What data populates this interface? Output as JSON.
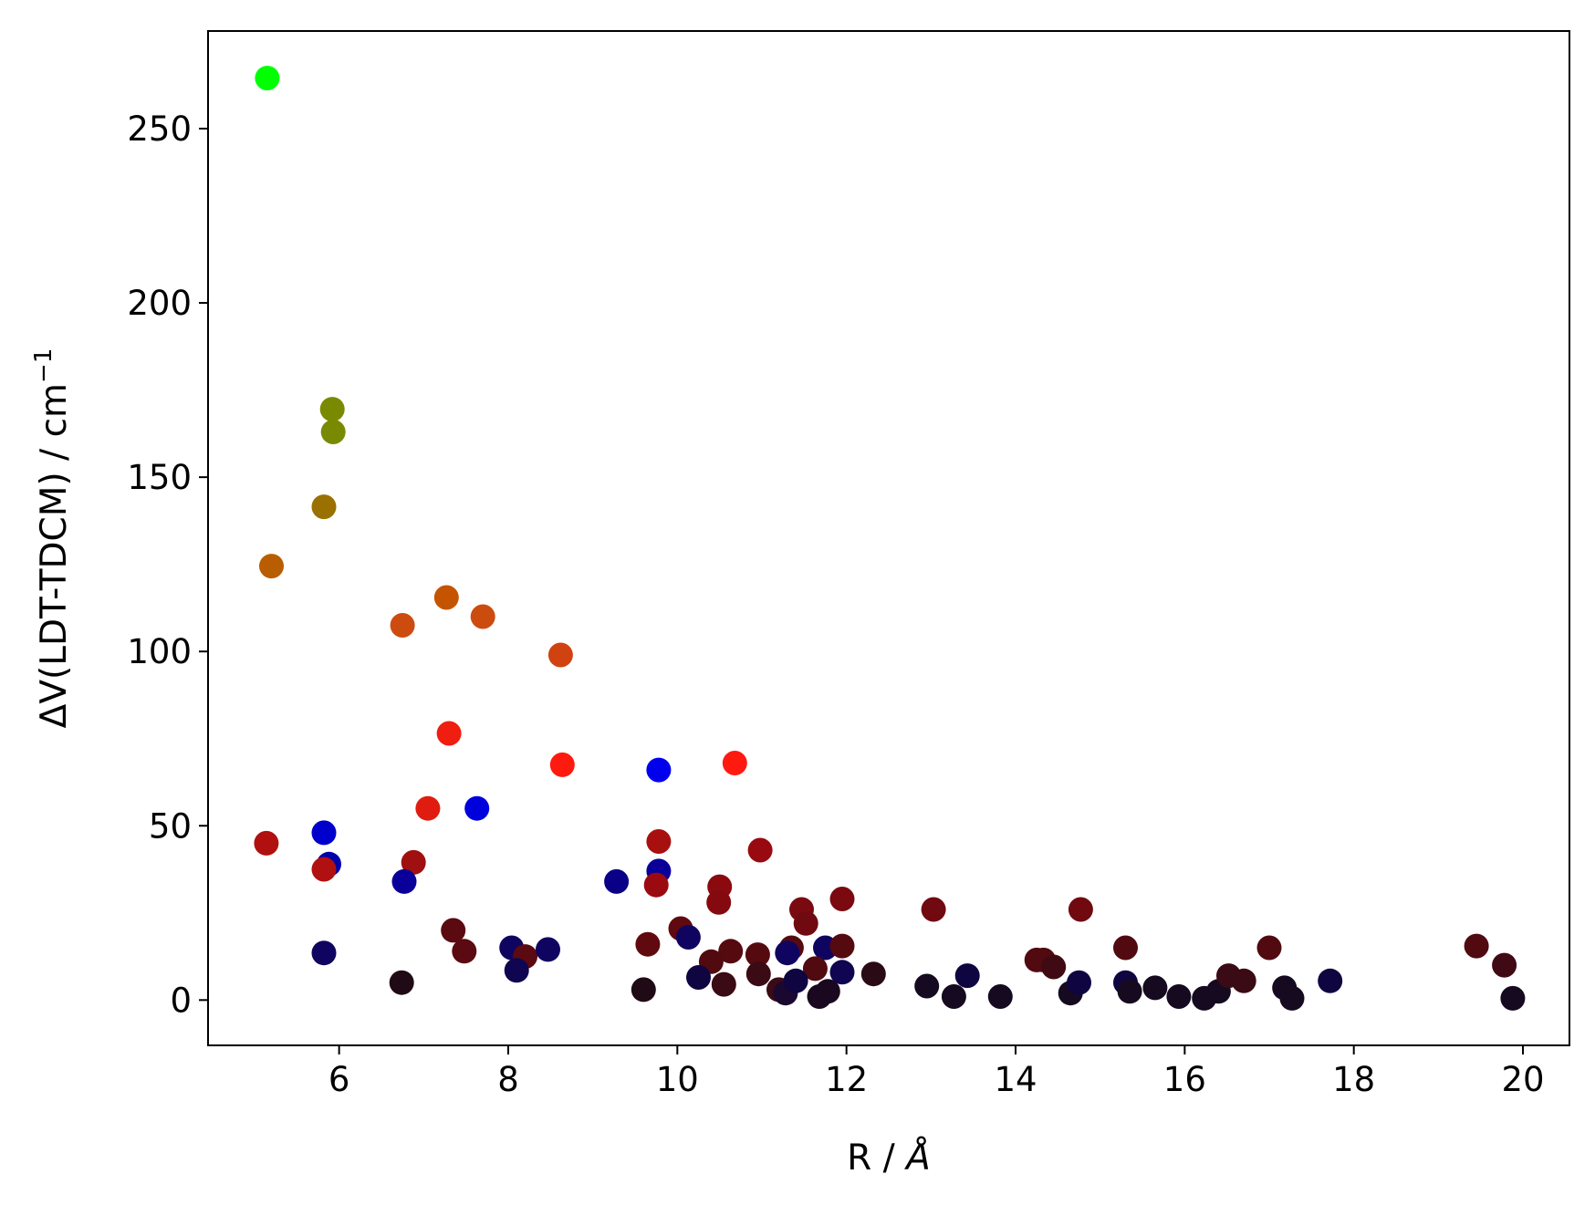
{
  "chart_data": {
    "type": "scatter",
    "xlabel": "R / Å",
    "xlabel_parts": {
      "prefix": "R / ",
      "unit": "Å"
    },
    "ylabel": "ΔV(LDT-TDCM) / cm⁻¹",
    "ylabel_parts": {
      "main": "ΔV(LDT-TDCM) / cm",
      "sup": "−1"
    },
    "xlim": [
      4.45,
      20.55
    ],
    "ylim": [
      -13,
      278
    ],
    "xticks": [
      6,
      8,
      10,
      12,
      14,
      16,
      18,
      20
    ],
    "yticks": [
      0,
      50,
      100,
      150,
      200,
      250
    ],
    "grid": false,
    "legend": "none",
    "points": [
      {
        "x": 5.15,
        "y": 264.5,
        "color": "#00ff00"
      },
      {
        "x": 5.92,
        "y": 169.5,
        "color": "#7a8a00"
      },
      {
        "x": 5.93,
        "y": 163.0,
        "color": "#7a8a00"
      },
      {
        "x": 5.82,
        "y": 141.5,
        "color": "#9a7000"
      },
      {
        "x": 5.2,
        "y": 124.5,
        "color": "#b85e00"
      },
      {
        "x": 7.27,
        "y": 115.5,
        "color": "#c55400"
      },
      {
        "x": 6.75,
        "y": 107.5,
        "color": "#cc4c10"
      },
      {
        "x": 7.7,
        "y": 110.0,
        "color": "#cc4c10"
      },
      {
        "x": 8.62,
        "y": 99.0,
        "color": "#d04210"
      },
      {
        "x": 7.3,
        "y": 76.5,
        "color": "#ef1e10"
      },
      {
        "x": 8.64,
        "y": 67.5,
        "color": "#ff1a10"
      },
      {
        "x": 10.68,
        "y": 68.0,
        "color": "#ff1a10"
      },
      {
        "x": 7.05,
        "y": 55.0,
        "color": "#e01c10"
      },
      {
        "x": 9.78,
        "y": 66.0,
        "color": "#0000ee"
      },
      {
        "x": 7.63,
        "y": 55.0,
        "color": "#0000dd"
      },
      {
        "x": 5.82,
        "y": 48.0,
        "color": "#0000cc"
      },
      {
        "x": 5.88,
        "y": 39.0,
        "color": "#0000aa"
      },
      {
        "x": 5.14,
        "y": 45.0,
        "color": "#b01010"
      },
      {
        "x": 5.82,
        "y": 37.5,
        "color": "#b01010"
      },
      {
        "x": 6.88,
        "y": 39.5,
        "color": "#a01010"
      },
      {
        "x": 6.77,
        "y": 34.0,
        "color": "#0a0099"
      },
      {
        "x": 9.78,
        "y": 45.5,
        "color": "#a81010"
      },
      {
        "x": 9.78,
        "y": 37.0,
        "color": "#0a0099"
      },
      {
        "x": 9.75,
        "y": 33.0,
        "color": "#9a0a10"
      },
      {
        "x": 9.28,
        "y": 34.0,
        "color": "#0a0088"
      },
      {
        "x": 10.98,
        "y": 43.0,
        "color": "#980a10"
      },
      {
        "x": 10.5,
        "y": 32.5,
        "color": "#8a0a10"
      },
      {
        "x": 10.49,
        "y": 28.0,
        "color": "#850a10"
      },
      {
        "x": 11.47,
        "y": 26.0,
        "color": "#7a0a10"
      },
      {
        "x": 11.95,
        "y": 29.0,
        "color": "#7a0a10"
      },
      {
        "x": 11.52,
        "y": 22.0,
        "color": "#700a10"
      },
      {
        "x": 13.03,
        "y": 26.0,
        "color": "#700a10"
      },
      {
        "x": 14.77,
        "y": 26.0,
        "color": "#700a10"
      },
      {
        "x": 7.35,
        "y": 20.0,
        "color": "#5a0a10"
      },
      {
        "x": 7.48,
        "y": 14.0,
        "color": "#5a0a10"
      },
      {
        "x": 5.82,
        "y": 13.5,
        "color": "#0f0560"
      },
      {
        "x": 8.04,
        "y": 15.0,
        "color": "#0f0560"
      },
      {
        "x": 8.2,
        "y": 12.5,
        "color": "#5a0a10"
      },
      {
        "x": 8.47,
        "y": 14.5,
        "color": "#0f0560"
      },
      {
        "x": 8.1,
        "y": 8.5,
        "color": "#0f0550"
      },
      {
        "x": 9.65,
        "y": 16.0,
        "color": "#600a10"
      },
      {
        "x": 10.04,
        "y": 20.5,
        "color": "#600a10"
      },
      {
        "x": 10.13,
        "y": 18.0,
        "color": "#0f0560"
      },
      {
        "x": 10.63,
        "y": 14.0,
        "color": "#550a10"
      },
      {
        "x": 10.95,
        "y": 13.0,
        "color": "#550a10"
      },
      {
        "x": 11.35,
        "y": 15.0,
        "color": "#550a10"
      },
      {
        "x": 11.3,
        "y": 13.5,
        "color": "#0f0560"
      },
      {
        "x": 11.75,
        "y": 15.0,
        "color": "#0f0560"
      },
      {
        "x": 11.95,
        "y": 15.5,
        "color": "#550a10"
      },
      {
        "x": 11.63,
        "y": 9.0,
        "color": "#500a10"
      },
      {
        "x": 11.95,
        "y": 8.0,
        "color": "#0f0550"
      },
      {
        "x": 10.4,
        "y": 11.0,
        "color": "#500a10"
      },
      {
        "x": 10.25,
        "y": 6.5,
        "color": "#0f0540"
      },
      {
        "x": 10.55,
        "y": 4.5,
        "color": "#3a0a15"
      },
      {
        "x": 10.96,
        "y": 7.5,
        "color": "#3a0a15"
      },
      {
        "x": 11.2,
        "y": 3.0,
        "color": "#3a0a15"
      },
      {
        "x": 11.28,
        "y": 2.0,
        "color": "#1a0830"
      },
      {
        "x": 11.4,
        "y": 5.5,
        "color": "#0f0540"
      },
      {
        "x": 11.68,
        "y": 1.0,
        "color": "#1a0820"
      },
      {
        "x": 11.78,
        "y": 2.5,
        "color": "#1a0820"
      },
      {
        "x": 12.32,
        "y": 7.5,
        "color": "#2a0a15"
      },
      {
        "x": 6.74,
        "y": 5.0,
        "color": "#200a15"
      },
      {
        "x": 9.6,
        "y": 3.0,
        "color": "#200a15"
      },
      {
        "x": 12.95,
        "y": 4.0,
        "color": "#150a20"
      },
      {
        "x": 13.27,
        "y": 1.0,
        "color": "#150a20"
      },
      {
        "x": 13.43,
        "y": 7.0,
        "color": "#0f0540"
      },
      {
        "x": 13.82,
        "y": 1.0,
        "color": "#150a20"
      },
      {
        "x": 14.25,
        "y": 11.5,
        "color": "#500a10"
      },
      {
        "x": 14.33,
        "y": 11.5,
        "color": "#500a10"
      },
      {
        "x": 14.45,
        "y": 9.5,
        "color": "#400a15"
      },
      {
        "x": 14.65,
        "y": 2.0,
        "color": "#150a20"
      },
      {
        "x": 14.75,
        "y": 5.0,
        "color": "#0f0540"
      },
      {
        "x": 15.3,
        "y": 15.0,
        "color": "#500a10"
      },
      {
        "x": 15.3,
        "y": 5.0,
        "color": "#0f0540"
      },
      {
        "x": 15.35,
        "y": 2.5,
        "color": "#150a20"
      },
      {
        "x": 15.65,
        "y": 3.5,
        "color": "#150a20"
      },
      {
        "x": 15.93,
        "y": 1.0,
        "color": "#150a20"
      },
      {
        "x": 16.23,
        "y": 0.5,
        "color": "#150a20"
      },
      {
        "x": 16.4,
        "y": 2.5,
        "color": "#150a20"
      },
      {
        "x": 16.52,
        "y": 7.0,
        "color": "#3a0a15"
      },
      {
        "x": 16.7,
        "y": 5.5,
        "color": "#3a0a15"
      },
      {
        "x": 17.0,
        "y": 15.0,
        "color": "#500a10"
      },
      {
        "x": 17.18,
        "y": 3.5,
        "color": "#150a20"
      },
      {
        "x": 17.27,
        "y": 0.5,
        "color": "#150a20"
      },
      {
        "x": 17.72,
        "y": 5.5,
        "color": "#0f0540"
      },
      {
        "x": 19.45,
        "y": 15.5,
        "color": "#500a10"
      },
      {
        "x": 19.78,
        "y": 10.0,
        "color": "#400a15"
      },
      {
        "x": 19.88,
        "y": 0.5,
        "color": "#150a20"
      }
    ]
  }
}
